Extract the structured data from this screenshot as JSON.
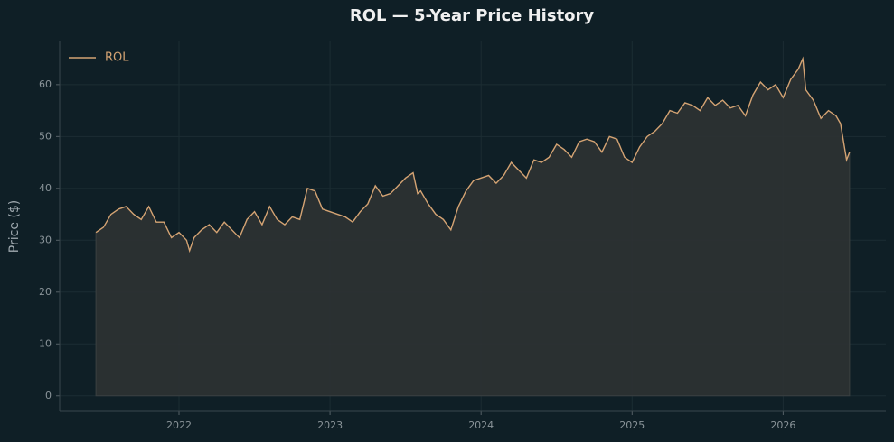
{
  "chart_data": {
    "type": "area",
    "title": "ROL — 5-Year Price History",
    "ylabel": "Price ($)",
    "series": [
      {
        "name": "ROL",
        "color": "#d4a373",
        "x": [
          2021.45,
          2021.5,
          2021.55,
          2021.6,
          2021.65,
          2021.7,
          2021.75,
          2021.8,
          2021.85,
          2021.9,
          2021.95,
          2022.0,
          2022.05,
          2022.07,
          2022.1,
          2022.15,
          2022.2,
          2022.25,
          2022.3,
          2022.35,
          2022.4,
          2022.45,
          2022.5,
          2022.55,
          2022.6,
          2022.65,
          2022.7,
          2022.75,
          2022.8,
          2022.85,
          2022.9,
          2022.95,
          2023.0,
          2023.05,
          2023.1,
          2023.15,
          2023.2,
          2023.25,
          2023.3,
          2023.35,
          2023.4,
          2023.45,
          2023.5,
          2023.55,
          2023.58,
          2023.6,
          2023.65,
          2023.7,
          2023.75,
          2023.8,
          2023.85,
          2023.9,
          2023.95,
          2024.0,
          2024.05,
          2024.1,
          2024.15,
          2024.2,
          2024.25,
          2024.3,
          2024.35,
          2024.4,
          2024.45,
          2024.5,
          2024.55,
          2024.6,
          2024.65,
          2024.7,
          2024.75,
          2024.8,
          2024.85,
          2024.9,
          2024.95,
          2025.0,
          2025.05,
          2025.1,
          2025.15,
          2025.2,
          2025.25,
          2025.3,
          2025.35,
          2025.4,
          2025.45,
          2025.5,
          2025.55,
          2025.6,
          2025.65,
          2025.7,
          2025.75,
          2025.8,
          2025.85,
          2025.9,
          2025.95,
          2026.0,
          2026.05,
          2026.1,
          2026.13,
          2026.15,
          2026.2,
          2026.25,
          2026.3,
          2026.35,
          2026.38,
          2026.42,
          2026.44
        ],
        "values": [
          31.5,
          32.5,
          35,
          36,
          36.5,
          35,
          34,
          36.5,
          33.5,
          33.5,
          30.5,
          31.5,
          30,
          28,
          30.5,
          32,
          33,
          31.5,
          33.5,
          32,
          30.5,
          34,
          35.5,
          33,
          36.5,
          34,
          33,
          34.5,
          34,
          40,
          39.5,
          36,
          35.5,
          35,
          34.5,
          33.5,
          35.5,
          37,
          40.5,
          38.5,
          39,
          40.5,
          42,
          43,
          39,
          39.5,
          37,
          35,
          34,
          32,
          36.5,
          39.5,
          41.5,
          42,
          42.5,
          41,
          42.5,
          45,
          43.5,
          42,
          45.5,
          45,
          46,
          48.5,
          47.5,
          46,
          49,
          49.5,
          49,
          47,
          50,
          49.5,
          46,
          45,
          48,
          50,
          51,
          52.5,
          55,
          54.5,
          56.5,
          56,
          55,
          57.5,
          56,
          57,
          55.5,
          56,
          54,
          58,
          60.5,
          59,
          60,
          57.5,
          61,
          63,
          65,
          59,
          57,
          53.5,
          55,
          54,
          52.5,
          45.5,
          47
        ]
      }
    ],
    "xlim": [
      2021.21,
      2026.68
    ],
    "ylim": [
      -3,
      68.5
    ],
    "xticks": [
      2022,
      2023,
      2024,
      2025,
      2026
    ],
    "yticks": [
      0,
      10,
      20,
      30,
      40,
      50,
      60
    ],
    "grid": true,
    "legend": "upper left",
    "fill_color": "#2e3233"
  }
}
